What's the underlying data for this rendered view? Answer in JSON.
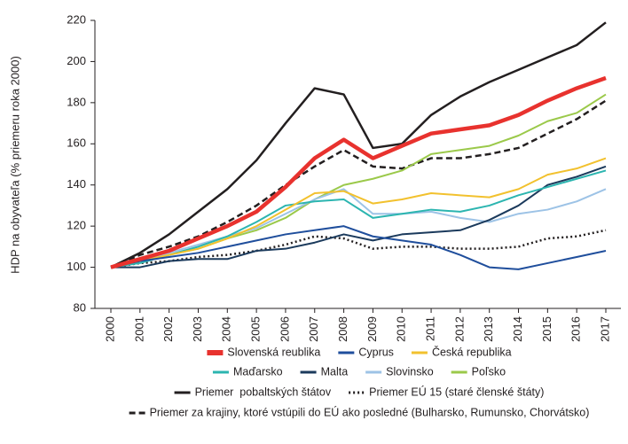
{
  "chart_data": {
    "type": "line",
    "y_label": "HDP na obyvateľa (% priemeru roka 2000)",
    "categories": [
      "2000",
      "2001",
      "2002",
      "2003",
      "2004",
      "2005",
      "2006",
      "2007",
      "2008",
      "2009",
      "2010",
      "2011",
      "2012",
      "2013",
      "2014",
      "2015",
      "2016",
      "2017"
    ],
    "ylim": [
      80,
      220
    ],
    "yticks": [
      80,
      100,
      120,
      140,
      160,
      180,
      200,
      220
    ],
    "grid": false,
    "series": [
      {
        "name": "Slovenská reublika",
        "color": "#e8322e",
        "width": 4.5,
        "dash": "solid",
        "values": [
          100,
          104,
          108,
          114,
          120,
          127,
          139,
          153,
          162,
          153,
          159,
          165,
          167,
          169,
          174,
          181,
          187,
          192
        ]
      },
      {
        "name": "Cyprus",
        "color": "#1f4e9c",
        "width": 2,
        "dash": "solid",
        "values": [
          100,
          103,
          105,
          107,
          110,
          113,
          116,
          118,
          120,
          115,
          113,
          111,
          106,
          100,
          99,
          102,
          105,
          108
        ]
      },
      {
        "name": "Česká republika",
        "color": "#f2c12e",
        "width": 2,
        "dash": "solid",
        "values": [
          100,
          103,
          106,
          109,
          114,
          120,
          128,
          136,
          137,
          131,
          133,
          136,
          135,
          134,
          138,
          145,
          148,
          153
        ]
      },
      {
        "name": "Maďarsko",
        "color": "#2cb5b0",
        "width": 2,
        "dash": "solid",
        "values": [
          100,
          102,
          106,
          110,
          115,
          122,
          130,
          132,
          133,
          124,
          126,
          128,
          127,
          130,
          135,
          139,
          143,
          147
        ]
      },
      {
        "name": "Malta",
        "color": "#1b3a5c",
        "width": 2,
        "dash": "solid",
        "values": [
          100,
          100,
          103,
          104,
          104,
          108,
          109,
          112,
          116,
          113,
          116,
          117,
          118,
          123,
          130,
          140,
          144,
          149
        ]
      },
      {
        "name": "Slovinsko",
        "color": "#9dc3e6",
        "width": 2,
        "dash": "solid",
        "values": [
          100,
          103,
          107,
          111,
          115,
          119,
          126,
          133,
          138,
          126,
          126,
          127,
          124,
          122,
          126,
          128,
          132,
          138
        ]
      },
      {
        "name": "Poľsko",
        "color": "#9bc94a",
        "width": 2,
        "dash": "solid",
        "values": [
          100,
          103,
          106,
          109,
          114,
          118,
          124,
          133,
          140,
          143,
          147,
          155,
          157,
          159,
          164,
          171,
          175,
          184
        ]
      },
      {
        "name": "Priemer  pobaltských štátov",
        "color": "#231f20",
        "width": 2.5,
        "dash": "solid",
        "values": [
          100,
          107,
          116,
          127,
          138,
          152,
          170,
          187,
          184,
          158,
          160,
          174,
          183,
          190,
          196,
          202,
          208,
          219
        ]
      },
      {
        "name": "Priemer EÚ 15 (staré členské štáty)",
        "color": "#231f20",
        "width": 2.5,
        "dash": "dotted",
        "values": [
          100,
          102,
          103,
          105,
          106,
          108,
          111,
          115,
          114,
          109,
          110,
          110,
          109,
          109,
          110,
          114,
          115,
          118
        ]
      },
      {
        "name": "Priemer za krajiny, ktoré vstúpili do EÚ ako posledné (Bulharsko, Rumunsko, Chorvátsko)",
        "color": "#231f20",
        "width": 2.5,
        "dash": "dashed",
        "values": [
          100,
          106,
          110,
          115,
          122,
          130,
          140,
          149,
          157,
          149,
          148,
          153,
          153,
          155,
          158,
          165,
          172,
          181
        ]
      }
    ]
  }
}
